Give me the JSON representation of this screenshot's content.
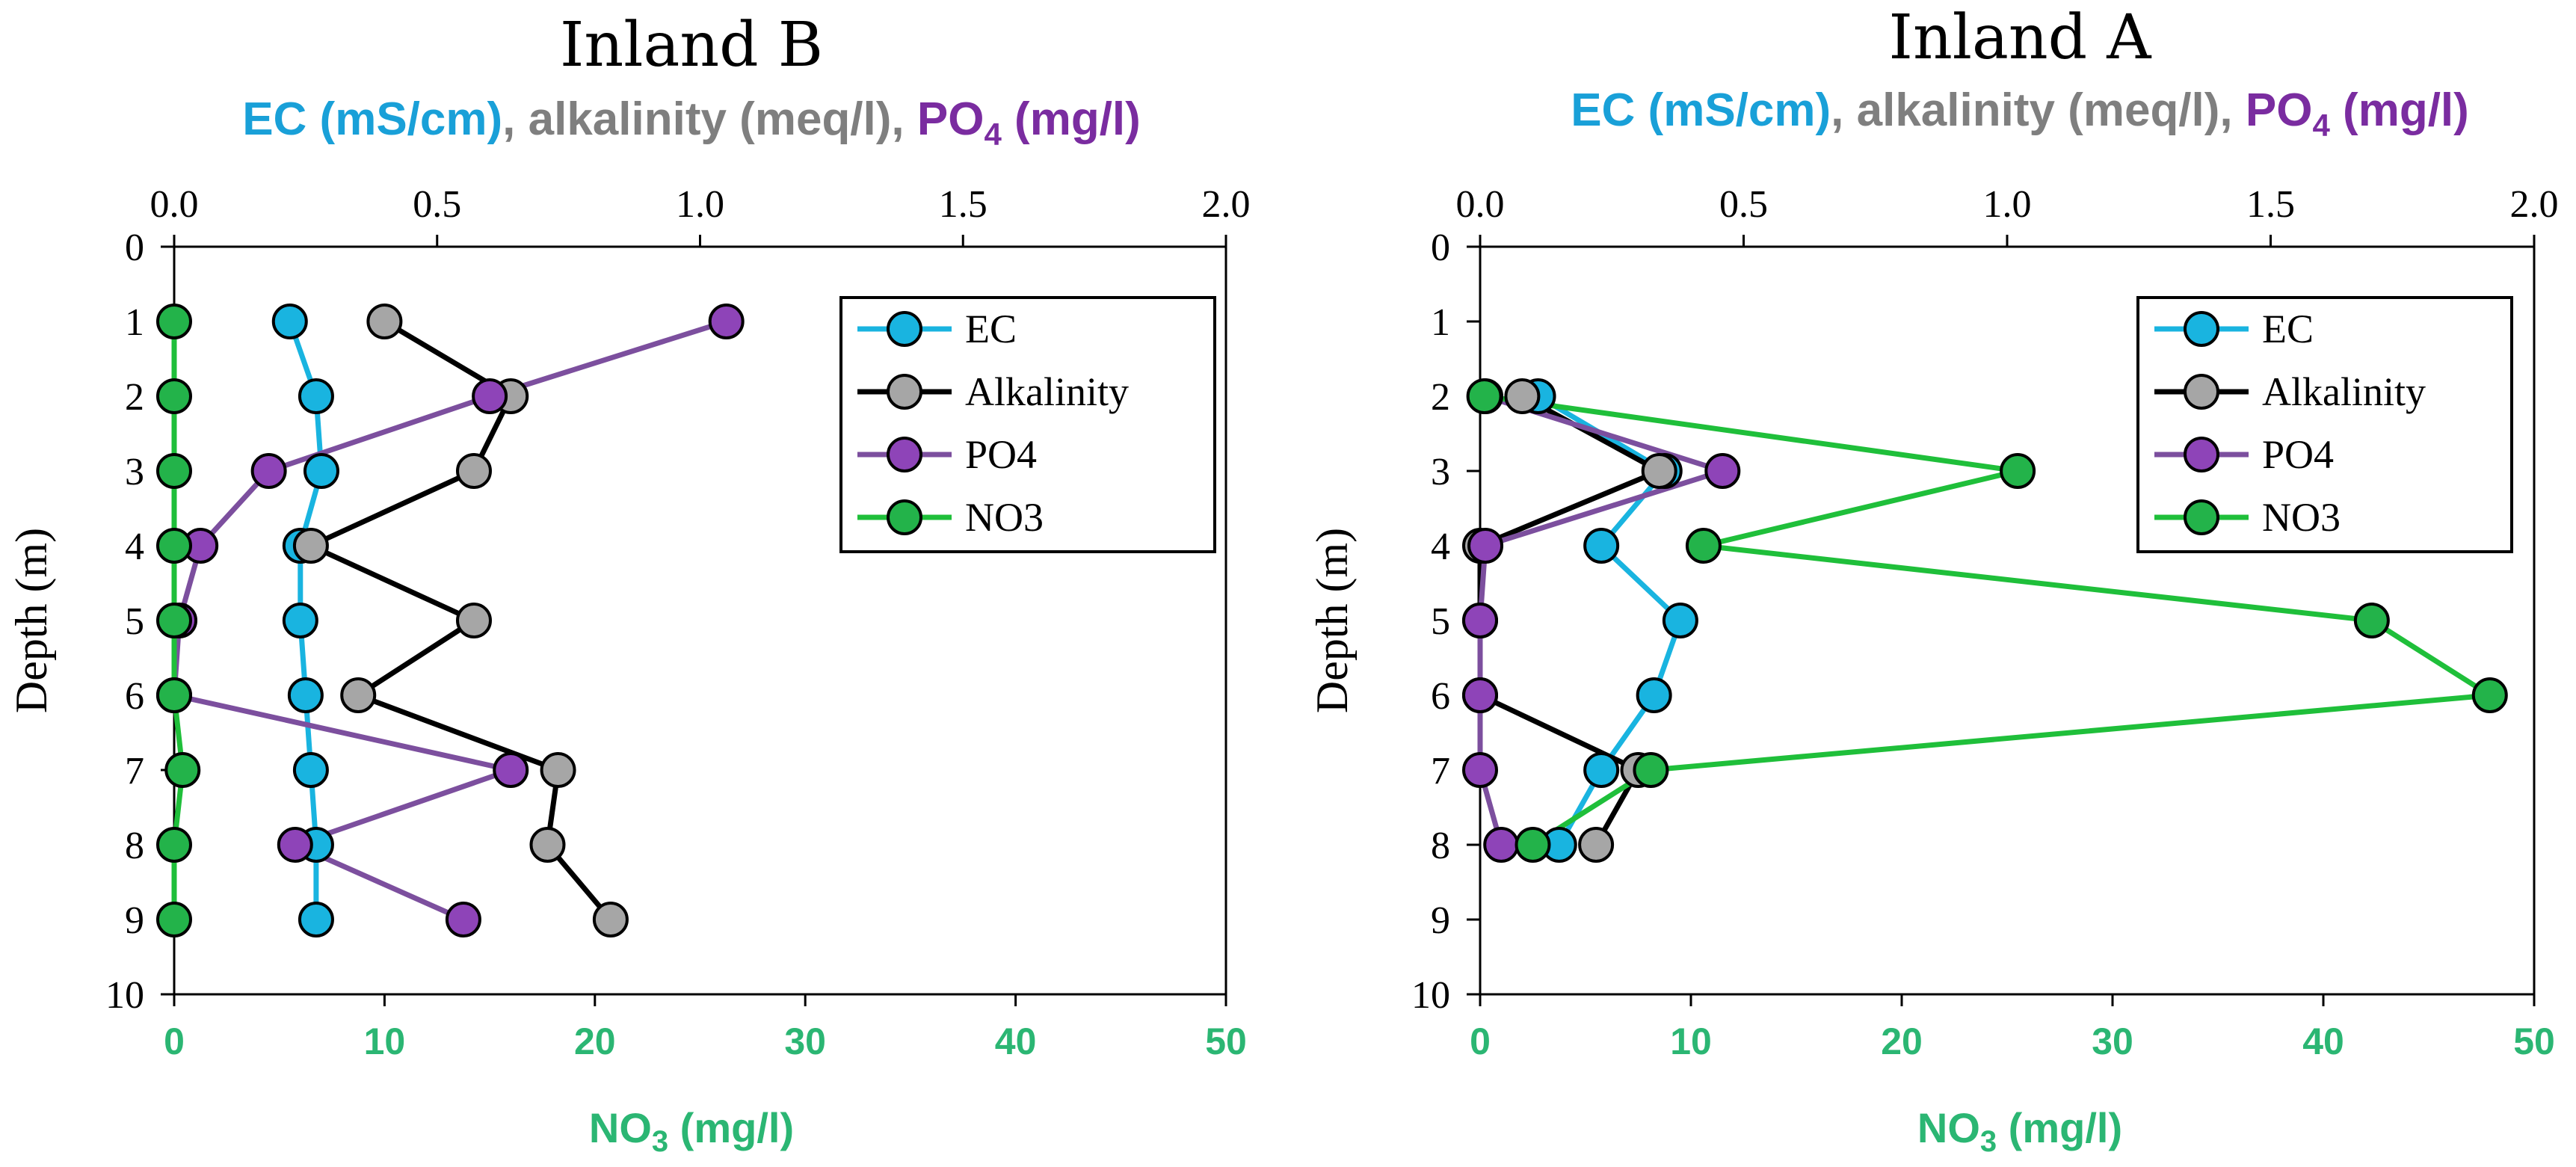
{
  "colors": {
    "EC": "#19b4e0",
    "Alkalinity": "#000000",
    "Alkalinity_marker": "#a6a6a6",
    "PO4": "#7c4f9e",
    "PO4_marker": "#8e44b8",
    "NO3": "#1fbf3a",
    "NO3_marker": "#23b34a",
    "label_ec": "#19a0d8",
    "label_alk": "#7f7f7f",
    "label_po4": "#7a2ca0",
    "label_no3": "#22b24c"
  },
  "chart_data": [
    {
      "type": "line",
      "title": "Inland B",
      "top_axis_label": {
        "ec": "EC (mS/cm)",
        "sep1": ", ",
        "alk": "alkalinity (meq/l)",
        "sep2": ", ",
        "po4_main": "PO",
        "po4_sub": "4",
        "po4_unit": " (mg/l)"
      },
      "top_axis_range": [
        0,
        2.0
      ],
      "top_ticks": [
        "0.0",
        "0.5",
        "1.0",
        "1.5",
        "2.0"
      ],
      "bottom_axis_label": {
        "main": "NO",
        "sub": "3",
        "unit": " (mg/l)"
      },
      "bottom_axis_range": [
        0,
        50
      ],
      "bottom_ticks": [
        "0",
        "10",
        "20",
        "30",
        "40",
        "50"
      ],
      "ylabel": "Depth (m)",
      "y_range": [
        0,
        10
      ],
      "y_ticks": [
        "0",
        "1",
        "2",
        "3",
        "4",
        "5",
        "6",
        "7",
        "8",
        "9",
        "10"
      ],
      "legend": [
        "EC",
        "Alkalinity",
        "PO4",
        "NO3"
      ],
      "legend_position": "top-right",
      "series": [
        {
          "name": "EC",
          "axis": "top",
          "depth": [
            1,
            2,
            3,
            4,
            5,
            6,
            7,
            8,
            9
          ],
          "values": [
            0.22,
            0.27,
            0.28,
            0.24,
            0.24,
            0.25,
            0.26,
            0.27,
            0.27
          ]
        },
        {
          "name": "Alkalinity",
          "axis": "top",
          "depth": [
            1,
            2,
            3,
            4,
            5,
            6,
            7,
            8,
            9
          ],
          "values": [
            0.4,
            0.64,
            0.57,
            0.26,
            0.57,
            0.35,
            0.73,
            0.71,
            0.83
          ]
        },
        {
          "name": "PO4",
          "axis": "top",
          "depth": [
            1,
            2,
            3,
            4,
            5,
            6,
            7,
            8,
            9
          ],
          "values": [
            1.05,
            0.6,
            0.18,
            0.05,
            0.01,
            0.0,
            0.64,
            0.23,
            0.55
          ]
        },
        {
          "name": "NO3",
          "axis": "bottom",
          "depth": [
            1,
            2,
            3,
            4,
            5,
            6,
            7,
            8,
            9
          ],
          "values": [
            0.0,
            0.0,
            0.0,
            0.0,
            0.0,
            0.0,
            0.4,
            0.0,
            0.0
          ]
        }
      ]
    },
    {
      "type": "line",
      "title": "Inland A",
      "top_axis_label": {
        "ec": "EC (mS/cm)",
        "sep1": ", ",
        "alk": "alkalinity (meq/l)",
        "sep2": ", ",
        "po4_main": "PO",
        "po4_sub": "4",
        "po4_unit": " (mg/l)"
      },
      "top_axis_range": [
        0,
        2.0
      ],
      "top_ticks": [
        "0.0",
        "0.5",
        "1.0",
        "1.5",
        "2.0"
      ],
      "bottom_axis_label": {
        "main": "NO",
        "sub": "3",
        "unit": " (mg/l)"
      },
      "bottom_axis_range": [
        0,
        50
      ],
      "bottom_ticks": [
        "0",
        "10",
        "20",
        "30",
        "40",
        "50"
      ],
      "ylabel": "Depth (m)",
      "y_range": [
        0,
        10
      ],
      "y_ticks": [
        "0",
        "1",
        "2",
        "3",
        "4",
        "5",
        "6",
        "7",
        "8",
        "9",
        "10"
      ],
      "legend": [
        "EC",
        "Alkalinity",
        "PO4",
        "NO3"
      ],
      "legend_position": "top-right",
      "series": [
        {
          "name": "EC",
          "axis": "top",
          "depth": [
            2,
            3,
            4,
            5,
            6,
            7,
            8
          ],
          "values": [
            0.11,
            0.35,
            0.23,
            0.38,
            0.33,
            0.23,
            0.15
          ]
        },
        {
          "name": "Alkalinity",
          "axis": "top",
          "depth": [
            2,
            3,
            4,
            5,
            6,
            7,
            8
          ],
          "values": [
            0.08,
            0.34,
            0.0,
            0.0,
            0.0,
            0.3,
            0.22
          ]
        },
        {
          "name": "PO4",
          "axis": "top",
          "depth": [
            2,
            3,
            4,
            5,
            6,
            7,
            8
          ],
          "values": [
            0.01,
            0.46,
            0.01,
            0.0,
            0.0,
            0.0,
            0.04
          ]
        },
        {
          "name": "NO3",
          "axis": "bottom",
          "depth": [
            2,
            3,
            4,
            5,
            6,
            7,
            8
          ],
          "values": [
            0.2,
            25.5,
            10.6,
            42.3,
            47.9,
            8.1,
            2.5
          ]
        }
      ]
    }
  ]
}
